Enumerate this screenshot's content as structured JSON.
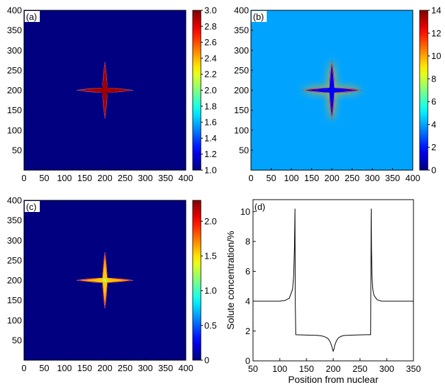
{
  "chart_data": [
    {
      "type": "heatmap",
      "label": "(a)",
      "x_ticks": [
        "0",
        "50",
        "100",
        "150",
        "200",
        "250",
        "300",
        "350",
        "400"
      ],
      "y_ticks": [
        "400",
        "350",
        "300",
        "250",
        "200",
        "150",
        "100",
        "50"
      ],
      "xlim": [
        0,
        400
      ],
      "ylim": [
        0,
        400
      ],
      "background_value": 1.0,
      "cross_center": [
        200,
        200
      ],
      "cross_arm_length": 70,
      "colorbar": {
        "min": 1.0,
        "max": 3.0,
        "ticks": [
          "1.0",
          "1.2",
          "1.4",
          "1.6",
          "1.8",
          "2.0",
          "2.2",
          "2.4",
          "2.6",
          "2.8",
          "3.0"
        ]
      }
    },
    {
      "type": "heatmap",
      "label": "(b)",
      "x_ticks": [
        "0",
        "50",
        "100",
        "150",
        "200",
        "250",
        "300",
        "350",
        "400"
      ],
      "y_ticks": [
        "400",
        "350",
        "300",
        "250",
        "200",
        "150",
        "100",
        "50"
      ],
      "xlim": [
        0,
        400
      ],
      "ylim": [
        0,
        400
      ],
      "background_value": 4,
      "cross_center": [
        200,
        200
      ],
      "cross_arm_length": 70,
      "colorbar": {
        "min": 0,
        "max": 14,
        "ticks": [
          "0",
          "2",
          "4",
          "6",
          "8",
          "10",
          "12",
          "14"
        ]
      }
    },
    {
      "type": "heatmap",
      "label": "(c)",
      "x_ticks": [
        "0",
        "50",
        "100",
        "150",
        "200",
        "250",
        "300",
        "350",
        "400"
      ],
      "y_ticks": [
        "400",
        "350",
        "300",
        "250",
        "200",
        "150",
        "100",
        "50"
      ],
      "xlim": [
        0,
        400
      ],
      "ylim": [
        0,
        400
      ],
      "background_value": 0,
      "cross_center": [
        200,
        200
      ],
      "cross_arm_length": 70,
      "colorbar": {
        "min": 0,
        "max": 2.3,
        "ticks": [
          "0",
          "0.5",
          "1.0",
          "1.5",
          "2.0"
        ]
      }
    },
    {
      "type": "line",
      "label": "(d)",
      "xlabel": "Position from nuclear",
      "ylabel": "Solute concentration/%",
      "xlim": [
        50,
        350
      ],
      "ylim": [
        0,
        10.8
      ],
      "x_ticks": [
        "50",
        "100",
        "150",
        "200",
        "250",
        "300",
        "350"
      ],
      "y_ticks": [
        "0",
        "2",
        "4",
        "6",
        "8",
        "10"
      ],
      "x": [
        50,
        100,
        110,
        118,
        124,
        126,
        127.5,
        128.5,
        129,
        130,
        140,
        150,
        160,
        170,
        180,
        185,
        190,
        194,
        197,
        199,
        200,
        201,
        203,
        206,
        210,
        215,
        220,
        230,
        240,
        250,
        260,
        270,
        271,
        271.5,
        272.5,
        274,
        276,
        282,
        290,
        300,
        350
      ],
      "y": [
        4.0,
        4.0,
        4.05,
        4.2,
        4.8,
        5.7,
        7.5,
        10.2,
        4.0,
        1.75,
        1.74,
        1.73,
        1.72,
        1.71,
        1.66,
        1.6,
        1.5,
        1.3,
        1.0,
        0.75,
        0.65,
        0.75,
        1.05,
        1.35,
        1.55,
        1.65,
        1.7,
        1.72,
        1.73,
        1.74,
        1.75,
        1.75,
        10.2,
        7.5,
        5.7,
        4.8,
        4.4,
        4.1,
        4.0,
        4.0,
        4.0
      ]
    }
  ]
}
